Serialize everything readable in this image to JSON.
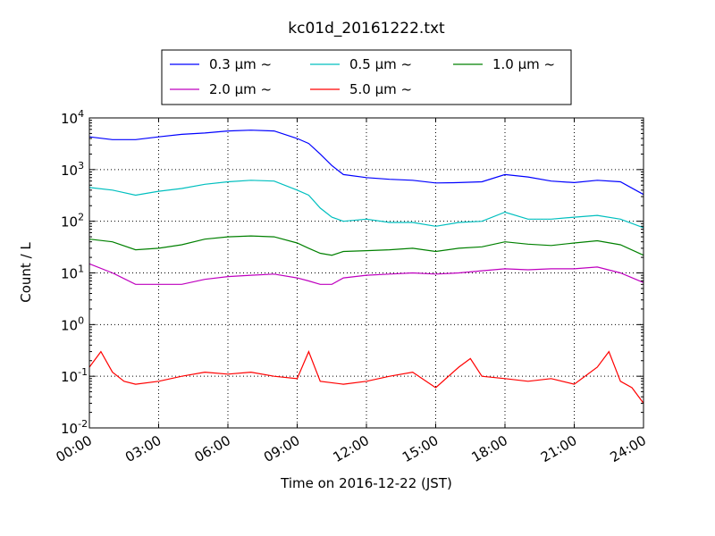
{
  "chart_data": {
    "type": "line",
    "title": "kc01d_20161222.txt",
    "xlabel": "Time on 2016-12-22 (JST)",
    "ylabel": "Count / L",
    "xlim": [
      "2016-12-22T00:00",
      "2016-12-23T00:00"
    ],
    "ylim": [
      0.01,
      10000
    ],
    "yscale": "log",
    "grid": true,
    "legend_position": "top",
    "x_ticks": [
      "00:00",
      "03:00",
      "06:00",
      "09:00",
      "12:00",
      "15:00",
      "18:00",
      "21:00",
      "24:00"
    ],
    "y_ticks": [
      {
        "base": "10",
        "exp": "-2"
      },
      {
        "base": "10",
        "exp": "-1"
      },
      {
        "base": "10",
        "exp": "0"
      },
      {
        "base": "10",
        "exp": "1"
      },
      {
        "base": "10",
        "exp": "2"
      },
      {
        "base": "10",
        "exp": "3"
      },
      {
        "base": "10",
        "exp": "4"
      }
    ],
    "series": [
      {
        "name": "0.3 μm ~",
        "color": "#0000ff",
        "x": [
          "00:00",
          "01:00",
          "02:00",
          "03:00",
          "04:00",
          "05:00",
          "06:00",
          "07:00",
          "08:00",
          "09:00",
          "09:30",
          "10:00",
          "10:30",
          "11:00",
          "12:00",
          "13:00",
          "14:00",
          "15:00",
          "16:00",
          "17:00",
          "18:00",
          "19:00",
          "20:00",
          "21:00",
          "22:00",
          "23:00",
          "24:00"
        ],
        "values": [
          4300,
          3800,
          3800,
          4300,
          4800,
          5100,
          5600,
          5800,
          5600,
          4000,
          3200,
          2000,
          1200,
          800,
          700,
          650,
          620,
          550,
          560,
          580,
          800,
          720,
          600,
          560,
          620,
          580,
          330
        ]
      },
      {
        "name": "0.5 μm ~",
        "color": "#00bfbf",
        "x": [
          "00:00",
          "01:00",
          "02:00",
          "03:00",
          "04:00",
          "05:00",
          "06:00",
          "07:00",
          "08:00",
          "09:00",
          "09:30",
          "10:00",
          "10:30",
          "11:00",
          "12:00",
          "13:00",
          "14:00",
          "15:00",
          "16:00",
          "17:00",
          "18:00",
          "19:00",
          "20:00",
          "21:00",
          "22:00",
          "23:00",
          "24:00"
        ],
        "values": [
          450,
          400,
          320,
          380,
          430,
          520,
          580,
          620,
          600,
          400,
          320,
          180,
          120,
          100,
          110,
          95,
          95,
          80,
          95,
          100,
          150,
          110,
          110,
          120,
          130,
          110,
          75
        ]
      },
      {
        "name": "1.0 μm ~",
        "color": "#008000",
        "x": [
          "00:00",
          "01:00",
          "02:00",
          "03:00",
          "04:00",
          "05:00",
          "06:00",
          "07:00",
          "08:00",
          "09:00",
          "09:30",
          "10:00",
          "10:30",
          "11:00",
          "12:00",
          "13:00",
          "14:00",
          "15:00",
          "16:00",
          "17:00",
          "18:00",
          "19:00",
          "20:00",
          "21:00",
          "22:00",
          "23:00",
          "24:00"
        ],
        "values": [
          45,
          40,
          28,
          30,
          35,
          45,
          50,
          52,
          50,
          38,
          30,
          24,
          22,
          26,
          27,
          28,
          30,
          26,
          30,
          32,
          40,
          36,
          34,
          38,
          42,
          35,
          22
        ]
      },
      {
        "name": "2.0 μm ~",
        "color": "#bf00bf",
        "x": [
          "00:00",
          "01:00",
          "02:00",
          "03:00",
          "04:00",
          "05:00",
          "06:00",
          "07:00",
          "08:00",
          "09:00",
          "09:30",
          "10:00",
          "10:30",
          "11:00",
          "12:00",
          "13:00",
          "14:00",
          "15:00",
          "16:00",
          "17:00",
          "18:00",
          "19:00",
          "20:00",
          "21:00",
          "22:00",
          "23:00",
          "24:00"
        ],
        "values": [
          15,
          10,
          6,
          6,
          6,
          7.5,
          8.5,
          9,
          9.5,
          8,
          7,
          6,
          6,
          8,
          9,
          9.5,
          10,
          9.5,
          10,
          11,
          12,
          11.5,
          12,
          12,
          13,
          10,
          6.5
        ]
      },
      {
        "name": "5.0 μm ~",
        "color": "#ff0000",
        "x": [
          "00:00",
          "00:30",
          "01:00",
          "01:30",
          "02:00",
          "03:00",
          "04:00",
          "05:00",
          "06:00",
          "07:00",
          "08:00",
          "09:00",
          "09:30",
          "10:00",
          "11:00",
          "12:00",
          "13:00",
          "14:00",
          "15:00",
          "16:00",
          "16:30",
          "17:00",
          "18:00",
          "19:00",
          "20:00",
          "21:00",
          "22:00",
          "22:30",
          "23:00",
          "23:30",
          "24:00"
        ],
        "values": [
          0.15,
          0.3,
          0.12,
          0.08,
          0.07,
          0.08,
          0.1,
          0.12,
          0.11,
          0.12,
          0.1,
          0.09,
          0.3,
          0.08,
          0.07,
          0.08,
          0.1,
          0.12,
          0.06,
          0.15,
          0.22,
          0.1,
          0.09,
          0.08,
          0.09,
          0.07,
          0.15,
          0.3,
          0.08,
          0.06,
          0.03
        ]
      }
    ]
  }
}
